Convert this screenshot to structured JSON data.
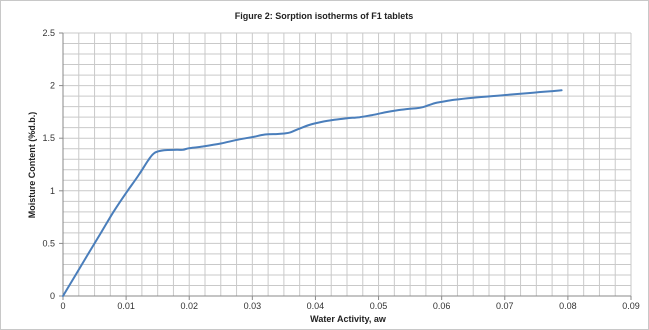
{
  "chart_data": {
    "type": "line",
    "title": "Figure 2: Sorption isotherms of F1 tablets",
    "xlabel": "Water Activity, aw",
    "ylabel": "Moisture Content (%d.b.)",
    "xlim": [
      0,
      0.09
    ],
    "ylim": [
      0,
      2.5
    ],
    "x_ticks": [
      "0",
      "0.01",
      "0.02",
      "0.03",
      "0.04",
      "0.05",
      "0.06",
      "0.07",
      "0.08",
      "0.09"
    ],
    "y_ticks": [
      "0",
      "0.5",
      "1",
      "1.5",
      "2",
      "2.5"
    ],
    "grid": true,
    "series": [
      {
        "color": "#4a7ebb",
        "x": [
          0,
          0.002,
          0.004,
          0.006,
          0.008,
          0.01,
          0.012,
          0.0135,
          0.0145,
          0.016,
          0.018,
          0.019,
          0.02,
          0.022,
          0.025,
          0.028,
          0.03,
          0.032,
          0.034,
          0.035,
          0.036,
          0.037,
          0.039,
          0.041,
          0.043,
          0.045,
          0.047,
          0.049,
          0.051,
          0.053,
          0.055,
          0.056,
          0.057,
          0.058,
          0.059,
          0.06,
          0.062,
          0.065,
          0.068,
          0.071,
          0.074,
          0.077,
          0.079
        ],
        "y": [
          0,
          0.2,
          0.4,
          0.6,
          0.8,
          0.98,
          1.15,
          1.29,
          1.36,
          1.385,
          1.39,
          1.39,
          1.405,
          1.42,
          1.45,
          1.49,
          1.51,
          1.535,
          1.54,
          1.545,
          1.555,
          1.58,
          1.625,
          1.655,
          1.675,
          1.69,
          1.7,
          1.72,
          1.745,
          1.765,
          1.78,
          1.785,
          1.795,
          1.815,
          1.835,
          1.845,
          1.865,
          1.885,
          1.9,
          1.915,
          1.93,
          1.945,
          1.955
        ]
      }
    ]
  }
}
